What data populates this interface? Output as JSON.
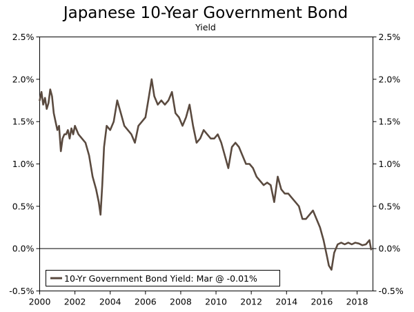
{
  "chart_data": {
    "type": "line",
    "title": "Japanese 10-Year Government Bond",
    "subtitle": "Yield",
    "xlabel": "",
    "ylabel": "",
    "ylim": [
      -0.5,
      2.5
    ],
    "y_ticks": [
      "2.5%",
      "2.0%",
      "1.5%",
      "1.0%",
      "0.5%",
      "0.0%",
      "-0.5%"
    ],
    "y_tick_values": [
      2.5,
      2.0,
      1.5,
      1.0,
      0.5,
      0.0,
      -0.5
    ],
    "xlim": [
      2000,
      2018.9
    ],
    "x_ticks": [
      "2000",
      "2002",
      "2004",
      "2006",
      "2008",
      "2010",
      "2012",
      "2014",
      "2016",
      "2018"
    ],
    "x_tick_values": [
      2000,
      2002,
      2004,
      2006,
      2008,
      2010,
      2012,
      2014,
      2016,
      2018
    ],
    "grid": false,
    "zero_line": true,
    "dual_y_axis": true,
    "legend_placement": "bottom-left",
    "series": [
      {
        "name": "10-Yr Government Bond Yield: Mar @ -0.01%",
        "color": "#5a4a3f",
        "x": [
          2000.0,
          2000.1,
          2000.2,
          2000.3,
          2000.4,
          2000.5,
          2000.6,
          2000.7,
          2000.8,
          2000.9,
          2001.0,
          2001.1,
          2001.2,
          2001.3,
          2001.4,
          2001.5,
          2001.6,
          2001.7,
          2001.8,
          2001.9,
          2002.0,
          2002.2,
          2002.4,
          2002.6,
          2002.8,
          2003.0,
          2003.2,
          2003.35,
          2003.45,
          2003.55,
          2003.65,
          2003.8,
          2004.0,
          2004.2,
          2004.4,
          2004.6,
          2004.8,
          2005.0,
          2005.2,
          2005.4,
          2005.6,
          2005.8,
          2006.0,
          2006.2,
          2006.35,
          2006.5,
          2006.7,
          2006.9,
          2007.1,
          2007.3,
          2007.5,
          2007.7,
          2007.9,
          2008.1,
          2008.3,
          2008.5,
          2008.7,
          2008.9,
          2009.1,
          2009.3,
          2009.5,
          2009.7,
          2009.9,
          2010.1,
          2010.3,
          2010.5,
          2010.7,
          2010.9,
          2011.1,
          2011.3,
          2011.5,
          2011.7,
          2011.9,
          2012.1,
          2012.3,
          2012.5,
          2012.7,
          2012.9,
          2013.1,
          2013.3,
          2013.5,
          2013.7,
          2013.9,
          2014.1,
          2014.3,
          2014.5,
          2014.7,
          2014.9,
          2015.1,
          2015.3,
          2015.5,
          2015.7,
          2015.9,
          2016.1,
          2016.3,
          2016.4,
          2016.55,
          2016.7,
          2016.9,
          2017.1,
          2017.3,
          2017.5,
          2017.7,
          2017.9,
          2018.1,
          2018.3,
          2018.5,
          2018.7,
          2018.8
        ],
        "y": [
          1.75,
          1.85,
          1.7,
          1.78,
          1.65,
          1.72,
          1.88,
          1.8,
          1.6,
          1.5,
          1.4,
          1.45,
          1.15,
          1.3,
          1.35,
          1.35,
          1.4,
          1.3,
          1.42,
          1.35,
          1.45,
          1.35,
          1.3,
          1.25,
          1.1,
          0.85,
          0.7,
          0.55,
          0.4,
          0.75,
          1.2,
          1.45,
          1.4,
          1.5,
          1.75,
          1.6,
          1.45,
          1.4,
          1.35,
          1.25,
          1.45,
          1.5,
          1.55,
          1.8,
          2.0,
          1.8,
          1.7,
          1.75,
          1.7,
          1.75,
          1.85,
          1.6,
          1.55,
          1.45,
          1.55,
          1.7,
          1.45,
          1.25,
          1.3,
          1.4,
          1.35,
          1.3,
          1.3,
          1.35,
          1.25,
          1.1,
          0.95,
          1.2,
          1.25,
          1.2,
          1.1,
          1.0,
          1.0,
          0.95,
          0.85,
          0.8,
          0.75,
          0.78,
          0.75,
          0.55,
          0.85,
          0.7,
          0.65,
          0.65,
          0.6,
          0.55,
          0.5,
          0.35,
          0.35,
          0.4,
          0.45,
          0.35,
          0.25,
          0.1,
          -0.1,
          -0.2,
          -0.25,
          -0.05,
          0.05,
          0.07,
          0.05,
          0.07,
          0.05,
          0.07,
          0.06,
          0.04,
          0.05,
          0.1,
          -0.01
        ]
      }
    ]
  }
}
